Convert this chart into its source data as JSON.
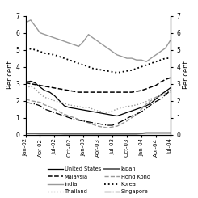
{
  "ylabel_left": "Per cent",
  "ylabel_right": "Per cent",
  "ylim": [
    0,
    7
  ],
  "yticks": [
    0,
    1,
    2,
    3,
    4,
    5,
    6,
    7
  ],
  "background_color": "#ffffff",
  "series": [
    {
      "name": "United States",
      "color": "#000000",
      "linestyle": "solid",
      "linewidth": 0.9,
      "data": [
        3.1,
        3.15,
        3.05,
        2.8,
        2.6,
        2.5,
        2.3,
        2.0,
        1.7,
        1.6,
        1.55,
        1.5,
        1.45,
        1.4,
        1.35,
        1.3,
        1.25,
        1.2,
        1.15,
        1.1,
        1.2,
        1.3,
        1.4,
        1.5,
        1.6,
        1.7,
        1.85,
        2.1,
        2.35,
        2.55,
        2.75
      ]
    },
    {
      "name": "Malaysia",
      "color": "#000000",
      "linestyle": "dashed",
      "linewidth": 1.1,
      "data": [
        3.05,
        3.0,
        2.95,
        2.9,
        2.85,
        2.8,
        2.75,
        2.7,
        2.65,
        2.6,
        2.55,
        2.5,
        2.5,
        2.5,
        2.5,
        2.5,
        2.5,
        2.5,
        2.5,
        2.5,
        2.5,
        2.5,
        2.5,
        2.55,
        2.6,
        2.7,
        2.8,
        2.9,
        3.1,
        3.25,
        3.35
      ]
    },
    {
      "name": "India",
      "color": "#999999",
      "linestyle": "solid",
      "linewidth": 1.0,
      "data": [
        6.6,
        6.75,
        6.4,
        6.0,
        5.9,
        5.8,
        5.7,
        5.6,
        5.5,
        5.4,
        5.3,
        5.2,
        5.5,
        5.9,
        5.7,
        5.5,
        5.3,
        5.1,
        4.9,
        4.7,
        4.6,
        4.5,
        4.5,
        4.4,
        4.4,
        4.3,
        4.5,
        4.7,
        4.9,
        5.1,
        5.55
      ]
    },
    {
      "name": "Thailand",
      "color": "#999999",
      "linestyle": "dotted",
      "linewidth": 1.0,
      "data": [
        2.75,
        2.85,
        2.7,
        2.4,
        2.2,
        2.1,
        2.0,
        1.9,
        1.85,
        1.75,
        1.7,
        1.65,
        1.6,
        1.6,
        1.5,
        1.4,
        1.35,
        1.3,
        1.4,
        1.5,
        1.6,
        1.65,
        1.7,
        1.75,
        1.85,
        1.95,
        2.1,
        2.2,
        2.3,
        2.45,
        2.6
      ]
    },
    {
      "name": "Japan",
      "color": "#666666",
      "linestyle": "solid",
      "linewidth": 1.4,
      "data": [
        0.07,
        0.07,
        0.07,
        0.06,
        0.06,
        0.06,
        0.06,
        0.06,
        0.05,
        0.05,
        0.05,
        0.05,
        0.05,
        0.05,
        0.05,
        0.05,
        0.05,
        0.05,
        0.05,
        0.05,
        0.05,
        0.05,
        0.05,
        0.05,
        0.07,
        0.1,
        0.1,
        0.1,
        0.1,
        0.1,
        0.1
      ]
    },
    {
      "name": "Hong Kong",
      "color": "#999999",
      "linestyle": "dashed",
      "linewidth": 1.0,
      "data": [
        2.1,
        2.0,
        1.95,
        1.9,
        1.75,
        1.65,
        1.5,
        1.35,
        1.2,
        1.1,
        1.0,
        0.9,
        0.8,
        0.7,
        0.6,
        0.5,
        0.45,
        0.4,
        0.45,
        0.5,
        0.65,
        0.8,
        1.0,
        1.2,
        1.5,
        1.8,
        2.0,
        2.2,
        2.3,
        2.4,
        2.5
      ]
    },
    {
      "name": "Korea",
      "color": "#000000",
      "linestyle": "dotted",
      "linewidth": 1.3,
      "data": [
        5.0,
        5.05,
        5.0,
        4.9,
        4.8,
        4.75,
        4.7,
        4.6,
        4.5,
        4.4,
        4.3,
        4.2,
        4.1,
        4.0,
        3.9,
        3.85,
        3.8,
        3.75,
        3.7,
        3.65,
        3.7,
        3.75,
        3.8,
        3.9,
        4.0,
        4.1,
        4.2,
        4.3,
        4.4,
        4.5,
        4.5
      ]
    },
    {
      "name": "Singapore",
      "color": "#000000",
      "linestyle": "dashdot",
      "linewidth": 0.9,
      "data": [
        1.9,
        1.85,
        1.8,
        1.7,
        1.5,
        1.4,
        1.3,
        1.2,
        1.1,
        1.0,
        0.9,
        0.85,
        0.8,
        0.75,
        0.7,
        0.65,
        0.6,
        0.55,
        0.55,
        0.65,
        0.8,
        0.95,
        1.1,
        1.2,
        1.35,
        1.55,
        1.75,
        1.95,
        2.1,
        2.35,
        2.6
      ]
    }
  ]
}
